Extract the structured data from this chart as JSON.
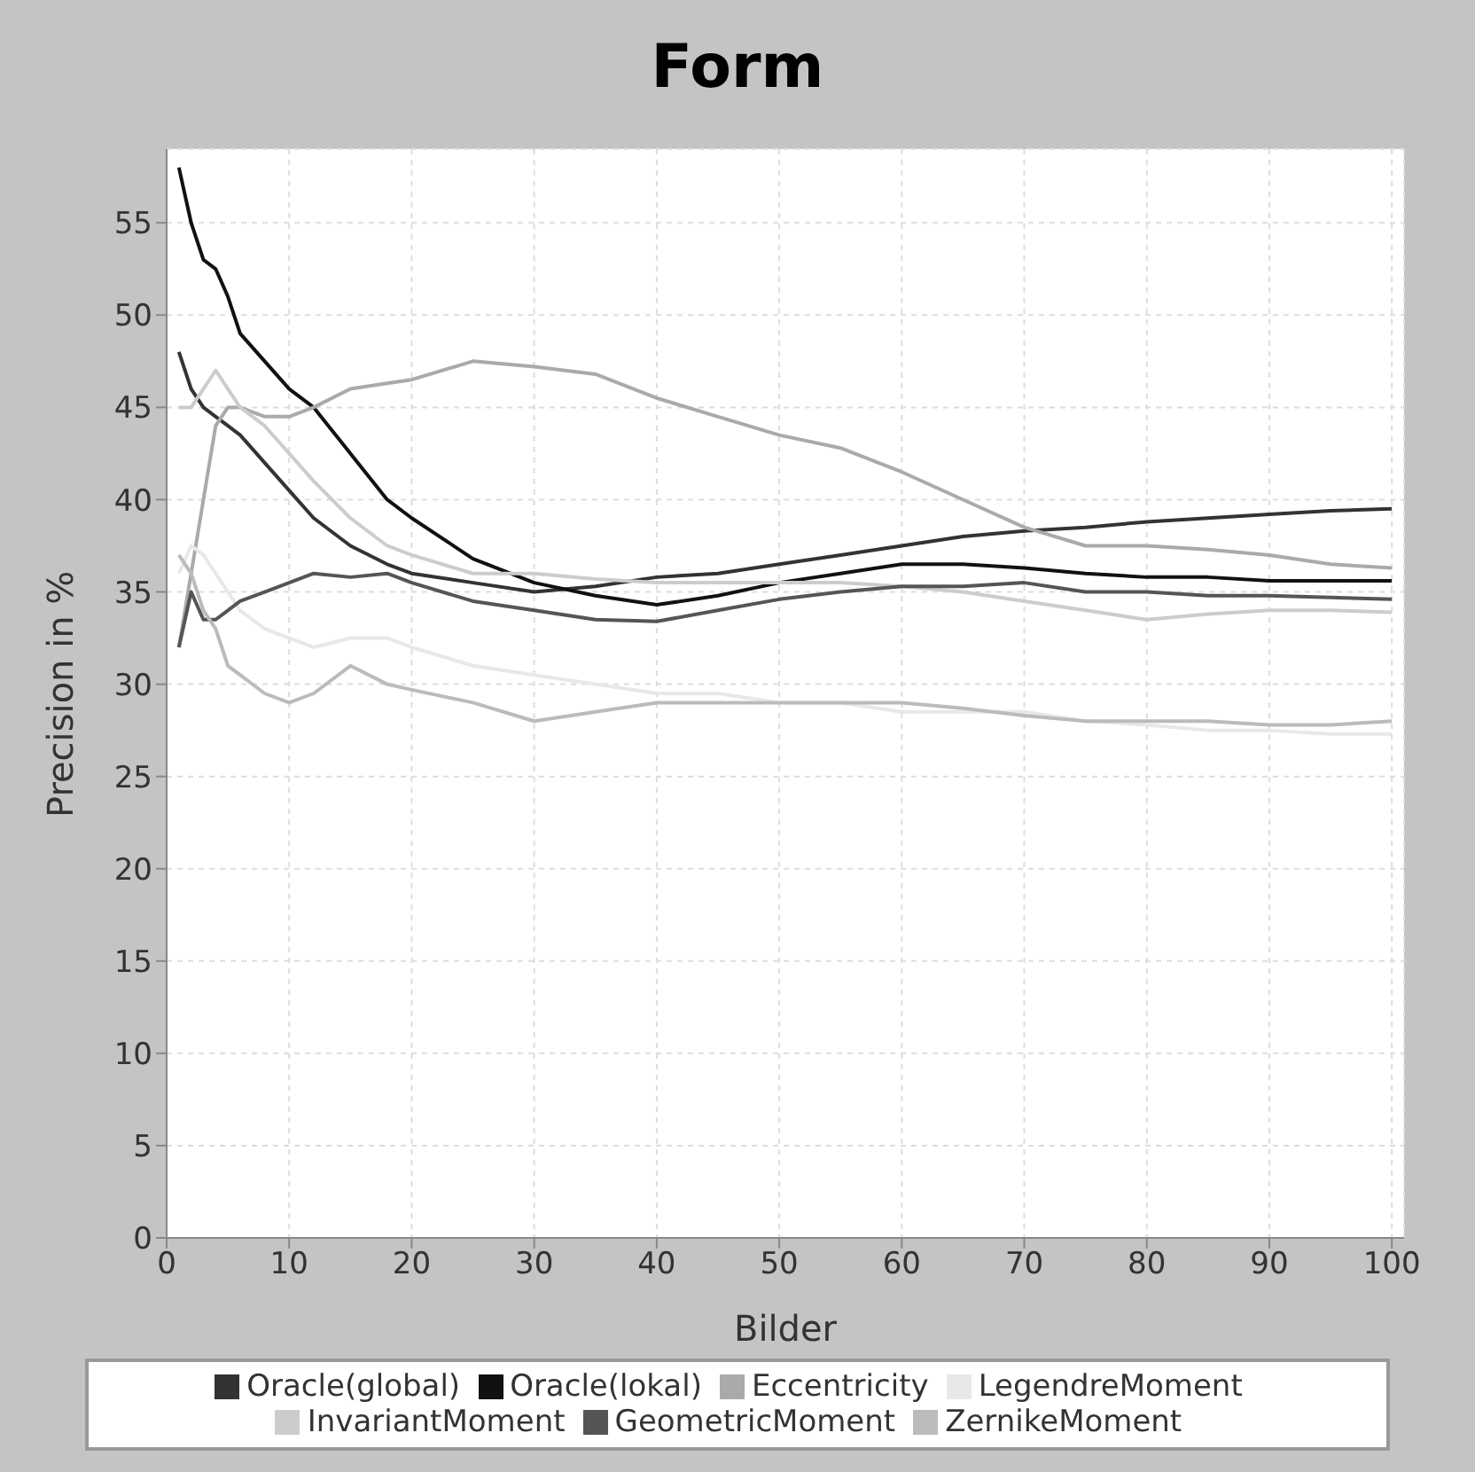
{
  "chart_data": {
    "type": "line",
    "title": "Form",
    "xlabel": "Bilder",
    "ylabel": "Precision in %",
    "x": [
      1,
      2,
      3,
      4,
      5,
      6,
      8,
      10,
      12,
      15,
      18,
      20,
      25,
      30,
      35,
      40,
      45,
      50,
      55,
      60,
      65,
      70,
      75,
      80,
      85,
      90,
      95,
      100
    ],
    "xlim": [
      0,
      101
    ],
    "xticks": [
      0,
      10,
      20,
      30,
      40,
      50,
      60,
      70,
      80,
      90,
      100
    ],
    "ylim": [
      0,
      59
    ],
    "yticks": [
      0,
      5,
      10,
      15,
      20,
      25,
      30,
      35,
      40,
      45,
      50,
      55
    ],
    "grid": true,
    "legend": "bottom",
    "series": [
      {
        "name": "Oracle(global)",
        "color": "#333333",
        "values": [
          48,
          46,
          45,
          44.5,
          44,
          43.5,
          42,
          40.5,
          39,
          37.5,
          36.5,
          36,
          35.5,
          35,
          35.3,
          35.8,
          36,
          36.5,
          37,
          37.5,
          38,
          38.3,
          38.5,
          38.8,
          39,
          39.2,
          39.4,
          39.5
        ]
      },
      {
        "name": "Oracle(lokal)",
        "color": "#111111",
        "values": [
          58,
          55,
          53,
          52.5,
          51,
          49,
          47.5,
          46,
          45,
          42.5,
          40,
          39,
          36.8,
          35.5,
          34.8,
          34.3,
          34.8,
          35.5,
          36,
          36.5,
          36.5,
          36.3,
          36,
          35.8,
          35.8,
          35.6,
          35.6,
          35.6
        ]
      },
      {
        "name": "Eccentricity",
        "color": "#aaaaaa",
        "values": [
          32,
          36,
          40,
          44,
          45,
          45,
          44.5,
          44.5,
          45,
          46,
          46.3,
          46.5,
          47.5,
          47.2,
          46.8,
          45.5,
          44.5,
          43.5,
          42.8,
          41.5,
          40,
          38.5,
          37.5,
          37.5,
          37.3,
          37,
          36.5,
          36.3
        ]
      },
      {
        "name": "LegendreMoment",
        "color": "#e8e8e8",
        "values": [
          36,
          37.5,
          37,
          36,
          35,
          34,
          33,
          32.5,
          32,
          32.5,
          32.5,
          32,
          31,
          30.5,
          30,
          29.5,
          29.5,
          29,
          29,
          28.5,
          28.5,
          28.5,
          28,
          27.8,
          27.5,
          27.5,
          27.3,
          27.3
        ]
      },
      {
        "name": "InvariantMoment",
        "color": "#cccccc",
        "values": [
          45,
          45,
          46,
          47,
          46,
          45,
          44,
          42.5,
          41,
          39,
          37.5,
          37,
          36,
          36,
          35.7,
          35.5,
          35.5,
          35.5,
          35.5,
          35.3,
          35,
          34.5,
          34,
          33.5,
          33.8,
          34,
          34,
          33.9
        ]
      },
      {
        "name": "GeometricMoment",
        "color": "#555555",
        "values": [
          32,
          35,
          33.5,
          33.5,
          34,
          34.5,
          35,
          35.5,
          36,
          35.8,
          36,
          35.5,
          34.5,
          34,
          33.5,
          33.4,
          34,
          34.6,
          35,
          35.3,
          35.3,
          35.5,
          35,
          35,
          34.8,
          34.8,
          34.7,
          34.6
        ]
      },
      {
        "name": "ZernikeMoment",
        "color": "#bbbbbb",
        "values": [
          37,
          36,
          34,
          33,
          31,
          30.5,
          29.5,
          29,
          29.5,
          31,
          30,
          29.7,
          29,
          28,
          28.5,
          29,
          29,
          29,
          29,
          29,
          28.7,
          28.3,
          28,
          28,
          28,
          27.8,
          27.8,
          28
        ]
      }
    ]
  }
}
